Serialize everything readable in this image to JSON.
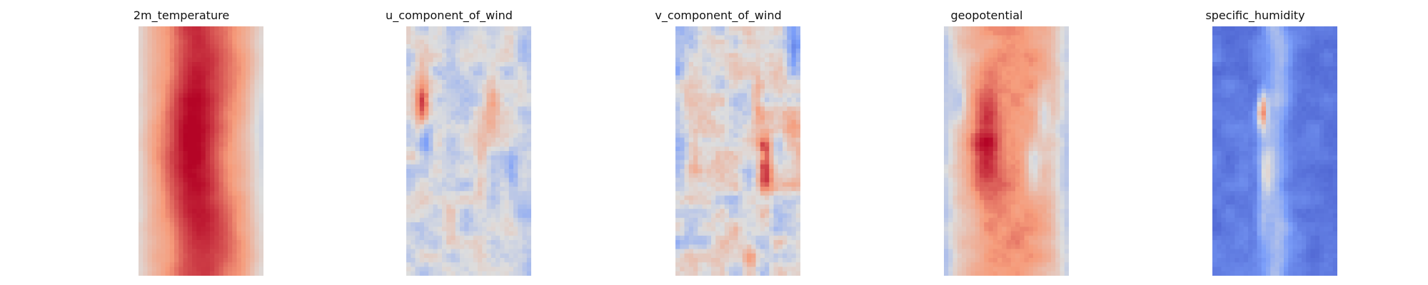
{
  "chart_data": [
    {
      "type": "heatmap",
      "title": "2m_temperature",
      "colormap": "coolwarm",
      "grid": false,
      "axes": "off",
      "xlabel": "",
      "ylabel": "",
      "field": {
        "base": 0.22,
        "band_amp": 0.55,
        "band_width": 0.33,
        "band_wobble": 0.05,
        "edge_left_cool": 0.2,
        "edge_right_cool": 0.25,
        "noise": 0.05,
        "blobs": [
          {
            "fx": 0.4,
            "fy": 0.32,
            "r": 0.18,
            "amp": 0.22
          },
          {
            "fx": 0.45,
            "fy": 0.7,
            "r": 0.2,
            "amp": 0.12
          },
          {
            "fx": 0.95,
            "fy": 0.4,
            "r": 0.1,
            "amp": -0.12
          }
        ]
      }
    },
    {
      "type": "heatmap",
      "title": "u_component_of_wind",
      "colormap": "coolwarm",
      "grid": false,
      "axes": "off",
      "xlabel": "",
      "ylabel": "",
      "field": {
        "base": -0.05,
        "band_amp": 0.0,
        "band_width": 0.3,
        "band_wobble": 0.0,
        "edge_left_cool": 0.0,
        "edge_right_cool": 0.15,
        "noise": 0.25,
        "blobs": [
          {
            "fx": 0.13,
            "fy": 0.3,
            "r": 0.06,
            "amp": 0.95
          },
          {
            "fx": 0.16,
            "fy": 0.45,
            "r": 0.05,
            "amp": -0.45
          },
          {
            "fx": 0.68,
            "fy": 0.32,
            "r": 0.06,
            "amp": 0.35
          },
          {
            "fx": 0.6,
            "fy": 0.56,
            "r": 0.05,
            "amp": 0.3
          },
          {
            "fx": 0.85,
            "fy": 0.6,
            "r": 0.06,
            "amp": -0.4
          },
          {
            "fx": 0.35,
            "fy": 0.8,
            "r": 0.06,
            "amp": 0.2
          }
        ]
      }
    },
    {
      "type": "heatmap",
      "title": "v_component_of_wind",
      "colormap": "coolwarm",
      "grid": false,
      "axes": "off",
      "xlabel": "",
      "ylabel": "",
      "field": {
        "base": 0.0,
        "band_amp": 0.0,
        "band_width": 0.3,
        "band_wobble": 0.0,
        "edge_left_cool": 0.15,
        "edge_right_cool": 0.0,
        "noise": 0.32,
        "blobs": [
          {
            "fx": 0.72,
            "fy": 0.56,
            "r": 0.06,
            "amp": 1.0
          },
          {
            "fx": 0.65,
            "fy": 0.3,
            "r": 0.05,
            "amp": 0.45
          },
          {
            "fx": 0.95,
            "fy": 0.1,
            "r": 0.06,
            "amp": -0.6
          },
          {
            "fx": 0.97,
            "fy": 0.5,
            "r": 0.1,
            "amp": 0.3
          },
          {
            "fx": 0.15,
            "fy": 0.5,
            "r": 0.05,
            "amp": 0.35
          },
          {
            "fx": 0.6,
            "fy": 0.95,
            "r": 0.06,
            "amp": 0.35
          }
        ]
      }
    },
    {
      "type": "heatmap",
      "title": "geopotential",
      "colormap": "coolwarm",
      "grid": false,
      "axes": "off",
      "xlabel": "",
      "ylabel": "",
      "field": {
        "base": 0.1,
        "band_amp": 0.45,
        "band_width": 0.33,
        "band_wobble": 0.06,
        "edge_left_cool": 0.3,
        "edge_right_cool": 0.3,
        "noise": 0.12,
        "blobs": [
          {
            "fx": 0.33,
            "fy": 0.48,
            "r": 0.12,
            "amp": 0.45
          },
          {
            "fx": 0.8,
            "fy": 0.35,
            "r": 0.05,
            "amp": -0.35
          },
          {
            "fx": 0.12,
            "fy": 0.3,
            "r": 0.06,
            "amp": -0.35
          },
          {
            "fx": 0.72,
            "fy": 0.55,
            "r": 0.05,
            "amp": -0.3
          }
        ]
      }
    },
    {
      "type": "heatmap",
      "title": "specific_humidity",
      "colormap": "coolwarm",
      "grid": false,
      "axes": "off",
      "xlabel": "",
      "ylabel": "",
      "field": {
        "base": -0.72,
        "band_amp": 0.45,
        "band_width": 0.1,
        "band_wobble": 0.03,
        "edge_left_cool": 0.0,
        "edge_right_cool": 0.05,
        "noise": 0.12,
        "blobs": [
          {
            "fx": 0.4,
            "fy": 0.34,
            "r": 0.04,
            "amp": 1.1
          },
          {
            "fx": 0.42,
            "fy": 0.6,
            "r": 0.05,
            "amp": 0.45
          },
          {
            "fx": 0.4,
            "fy": 0.8,
            "r": 0.05,
            "amp": 0.35
          }
        ]
      }
    }
  ],
  "grid_cells": {
    "cols": 28,
    "rows": 56
  }
}
